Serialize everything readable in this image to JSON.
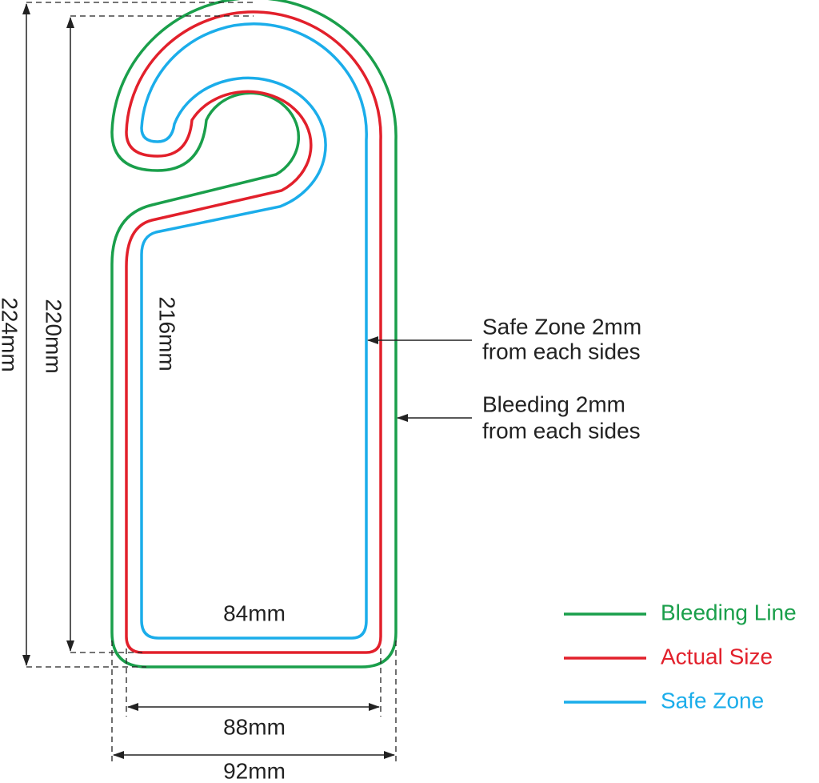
{
  "dimensions": {
    "total_height": "224mm",
    "actual_height": "220mm",
    "safe_height": "216mm",
    "safe_width": "84mm",
    "actual_width": "88mm",
    "total_width": "92mm"
  },
  "annotations": [
    {
      "lines": [
        "Safe Zone 2mm",
        "from each sides"
      ]
    },
    {
      "lines": [
        "Bleeding 2mm",
        "from each sides"
      ]
    }
  ],
  "legend": [
    {
      "label": "Bleeding Line",
      "color": "#1a9f4b"
    },
    {
      "label": "Actual Size",
      "color": "#e2202b"
    },
    {
      "label": "Safe Zone",
      "color": "#1badea"
    }
  ]
}
